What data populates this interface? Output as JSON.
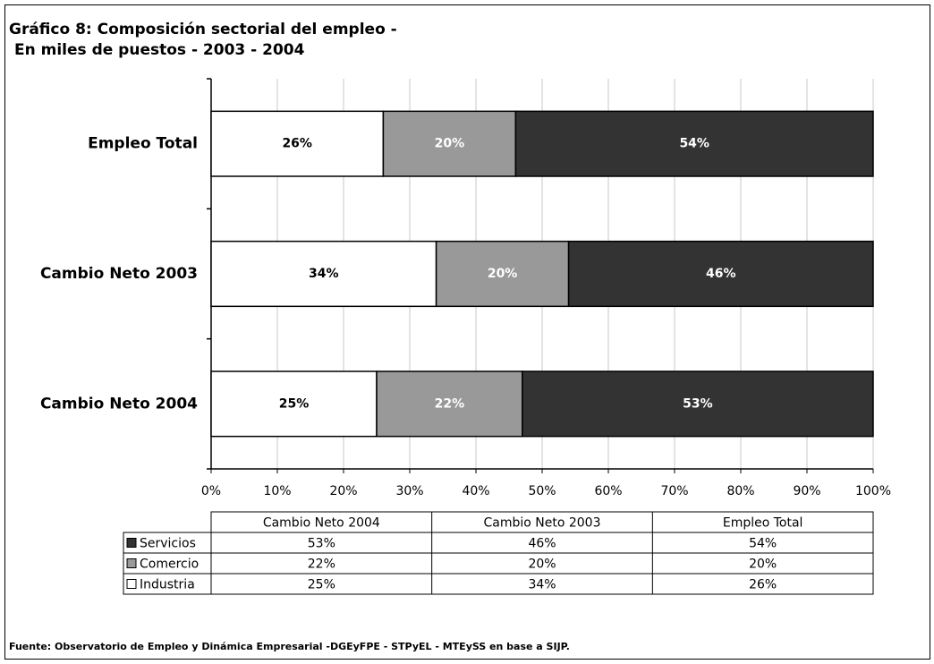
{
  "chart_data": {
    "type": "stacked_barh",
    "title": "Gráfico 8: Composición sectorial del empleo -",
    "subtitle": "En miles de puestos - 2003 - 2004",
    "categories": [
      "Empleo Total",
      "Cambio Neto 2003",
      "Cambio Neto 2004"
    ],
    "series": [
      {
        "name": "Industria",
        "color": "#ffffff",
        "label_color": "#000000",
        "values": [
          26,
          34,
          25
        ],
        "value_labels": [
          "26%",
          "34%",
          "25%"
        ]
      },
      {
        "name": "Comercio",
        "color": "#999999",
        "label_color": "#ffffff",
        "values": [
          20,
          20,
          22
        ],
        "value_labels": [
          "20%",
          "20%",
          "22%"
        ]
      },
      {
        "name": "Servicios",
        "color": "#333333",
        "label_color": "#ffffff",
        "values": [
          54,
          46,
          53
        ],
        "value_labels": [
          "54%",
          "46%",
          "53%"
        ]
      }
    ],
    "xlim": [
      0,
      100
    ],
    "xticks": [
      {
        "value": 0,
        "label": "0%"
      },
      {
        "value": 10,
        "label": "10%"
      },
      {
        "value": 20,
        "label": "20%"
      },
      {
        "value": 30,
        "label": "30%"
      },
      {
        "value": 40,
        "label": "40%"
      },
      {
        "value": 50,
        "label": "50%"
      },
      {
        "value": 60,
        "label": "60%"
      },
      {
        "value": 70,
        "label": "70%"
      },
      {
        "value": 80,
        "label": "80%"
      },
      {
        "value": 90,
        "label": "90%"
      },
      {
        "value": 100,
        "label": "100%"
      }
    ],
    "grid": true,
    "footer": "Fuente: Observatorio de Empleo y Dinámica Empresarial -DGEyFPE - STPyEL -  MTEySS en base a SIJP."
  }
}
